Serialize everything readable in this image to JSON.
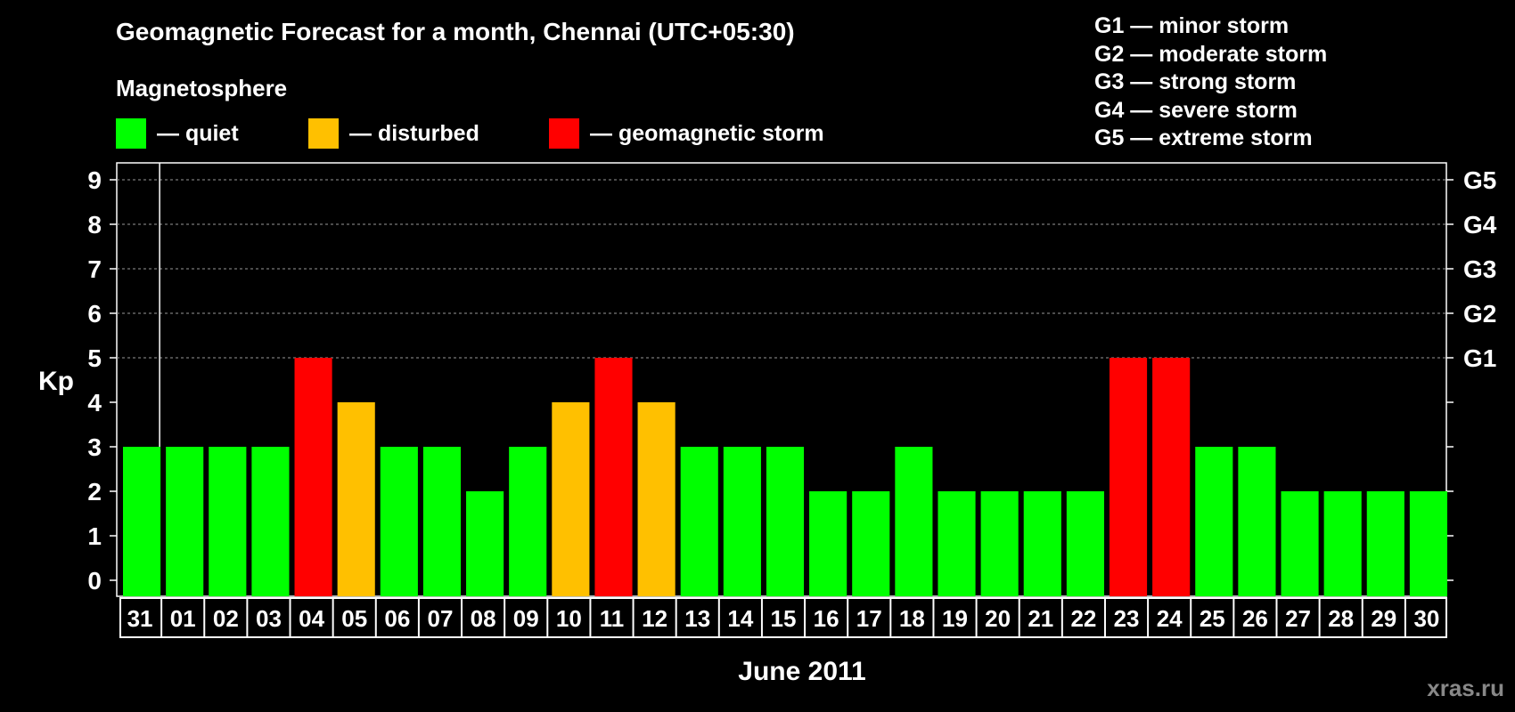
{
  "chart_data": {
    "type": "bar",
    "title": "Geomagnetic Forecast for a month, Chennai (UTC+05:30)",
    "subtitle": "Magnetosphere",
    "xlabel": "June 2011",
    "ylabel": "Kp",
    "ylim": [
      0,
      9
    ],
    "grid": "dashed horizontal lines at Kp 5-9",
    "categories": [
      "31",
      "01",
      "02",
      "03",
      "04",
      "05",
      "06",
      "07",
      "08",
      "09",
      "10",
      "11",
      "12",
      "13",
      "14",
      "15",
      "16",
      "17",
      "18",
      "19",
      "20",
      "21",
      "22",
      "23",
      "24",
      "25",
      "26",
      "27",
      "28",
      "29",
      "30"
    ],
    "values": [
      3,
      3,
      3,
      3,
      5,
      4,
      3,
      3,
      2,
      3,
      4,
      5,
      4,
      3,
      3,
      3,
      2,
      2,
      3,
      2,
      2,
      2,
      2,
      5,
      5,
      3,
      3,
      2,
      2,
      2,
      2
    ],
    "yticks": [
      "0",
      "1",
      "2",
      "3",
      "4",
      "5",
      "6",
      "7",
      "8",
      "9"
    ],
    "right_ticks": [
      {
        "kp": 5,
        "label": "G1"
      },
      {
        "kp": 6,
        "label": "G2"
      },
      {
        "kp": 7,
        "label": "G3"
      },
      {
        "kp": 8,
        "label": "G4"
      },
      {
        "kp": 9,
        "label": "G5"
      }
    ],
    "legend": [
      {
        "label": "— quiet",
        "color": "#00ff00"
      },
      {
        "label": "— disturbed",
        "color": "#ffc000"
      },
      {
        "label": "— geomagnetic storm",
        "color": "#ff0000"
      }
    ],
    "g_legend": [
      "G1 — minor storm",
      "G2 — moderate storm",
      "G3 — strong storm",
      "G4 — severe storm",
      "G5 — extreme storm"
    ],
    "watermark": "xras.ru"
  }
}
